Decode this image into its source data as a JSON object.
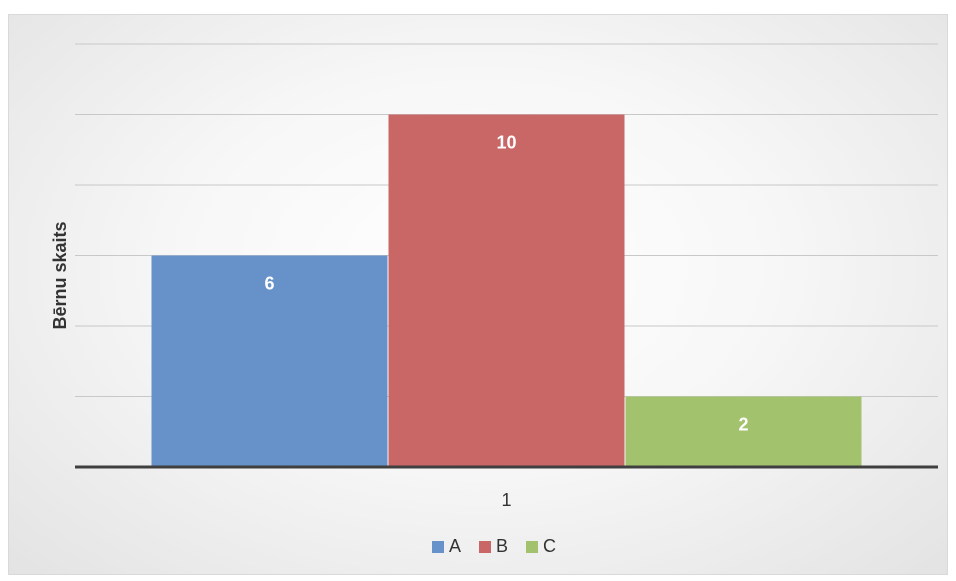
{
  "chart_data": {
    "type": "bar",
    "categories": [
      "1"
    ],
    "series": [
      {
        "name": "A",
        "values": [
          6
        ],
        "color": "#6691c9"
      },
      {
        "name": "B",
        "values": [
          10
        ],
        "color": "#c96666"
      },
      {
        "name": "C",
        "values": [
          2
        ],
        "color": "#a3c26d"
      }
    ],
    "ylabel": "Bērnu skaits",
    "xlabel": "",
    "ylim": [
      0,
      12
    ],
    "grid": true,
    "legend": "bottom",
    "data_labels": true
  }
}
